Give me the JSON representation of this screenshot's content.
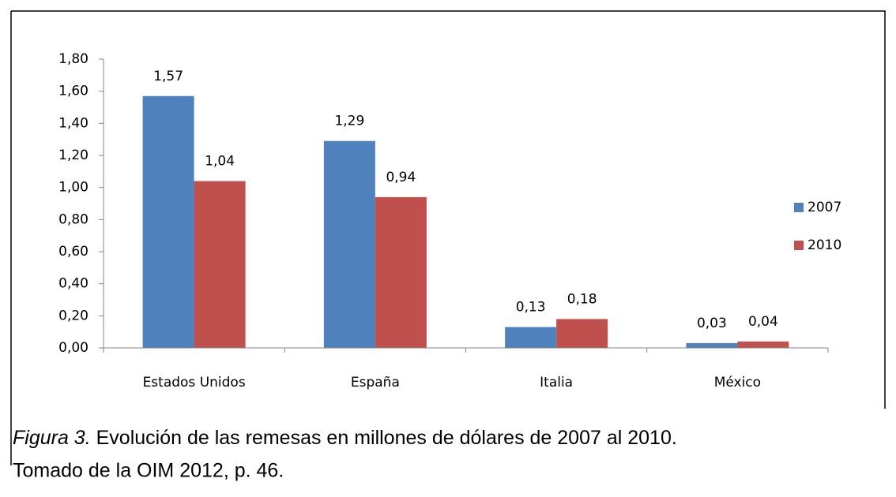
{
  "chart_data": {
    "type": "bar",
    "categories": [
      "Estados Unidos",
      "España",
      "Italia",
      "México"
    ],
    "series": [
      {
        "name": "2007",
        "color": "#4f81bd",
        "values": [
          1.57,
          1.29,
          0.13,
          0.03
        ],
        "value_labels": [
          "1,57",
          "1,29",
          "0,13",
          "0,03"
        ]
      },
      {
        "name": "2010",
        "color": "#c0504d",
        "values": [
          1.04,
          0.94,
          0.18,
          0.04
        ],
        "value_labels": [
          "1,04",
          "0,94",
          "0,18",
          "0,04"
        ]
      }
    ],
    "ylim": [
      0,
      1.8
    ],
    "yticks": [
      {
        "value": 0,
        "label": "0,00"
      },
      {
        "value": 0.2,
        "label": "0,20"
      },
      {
        "value": 0.4,
        "label": "0,40"
      },
      {
        "value": 0.6,
        "label": "0,60"
      },
      {
        "value": 0.8,
        "label": "0,80"
      },
      {
        "value": 1.0,
        "label": "1,00"
      },
      {
        "value": 1.2,
        "label": "1,20"
      },
      {
        "value": 1.4,
        "label": "1,40"
      },
      {
        "value": 1.6,
        "label": "1,60"
      },
      {
        "value": 1.8,
        "label": "1,80"
      }
    ],
    "legend": "right",
    "caption_label": "Figura 3.",
    "caption_text": "Evolución de las remesas en millones de dólares de 2007 al 2010.",
    "caption_source": "Tomado de la OIM 2012, p. 46."
  }
}
